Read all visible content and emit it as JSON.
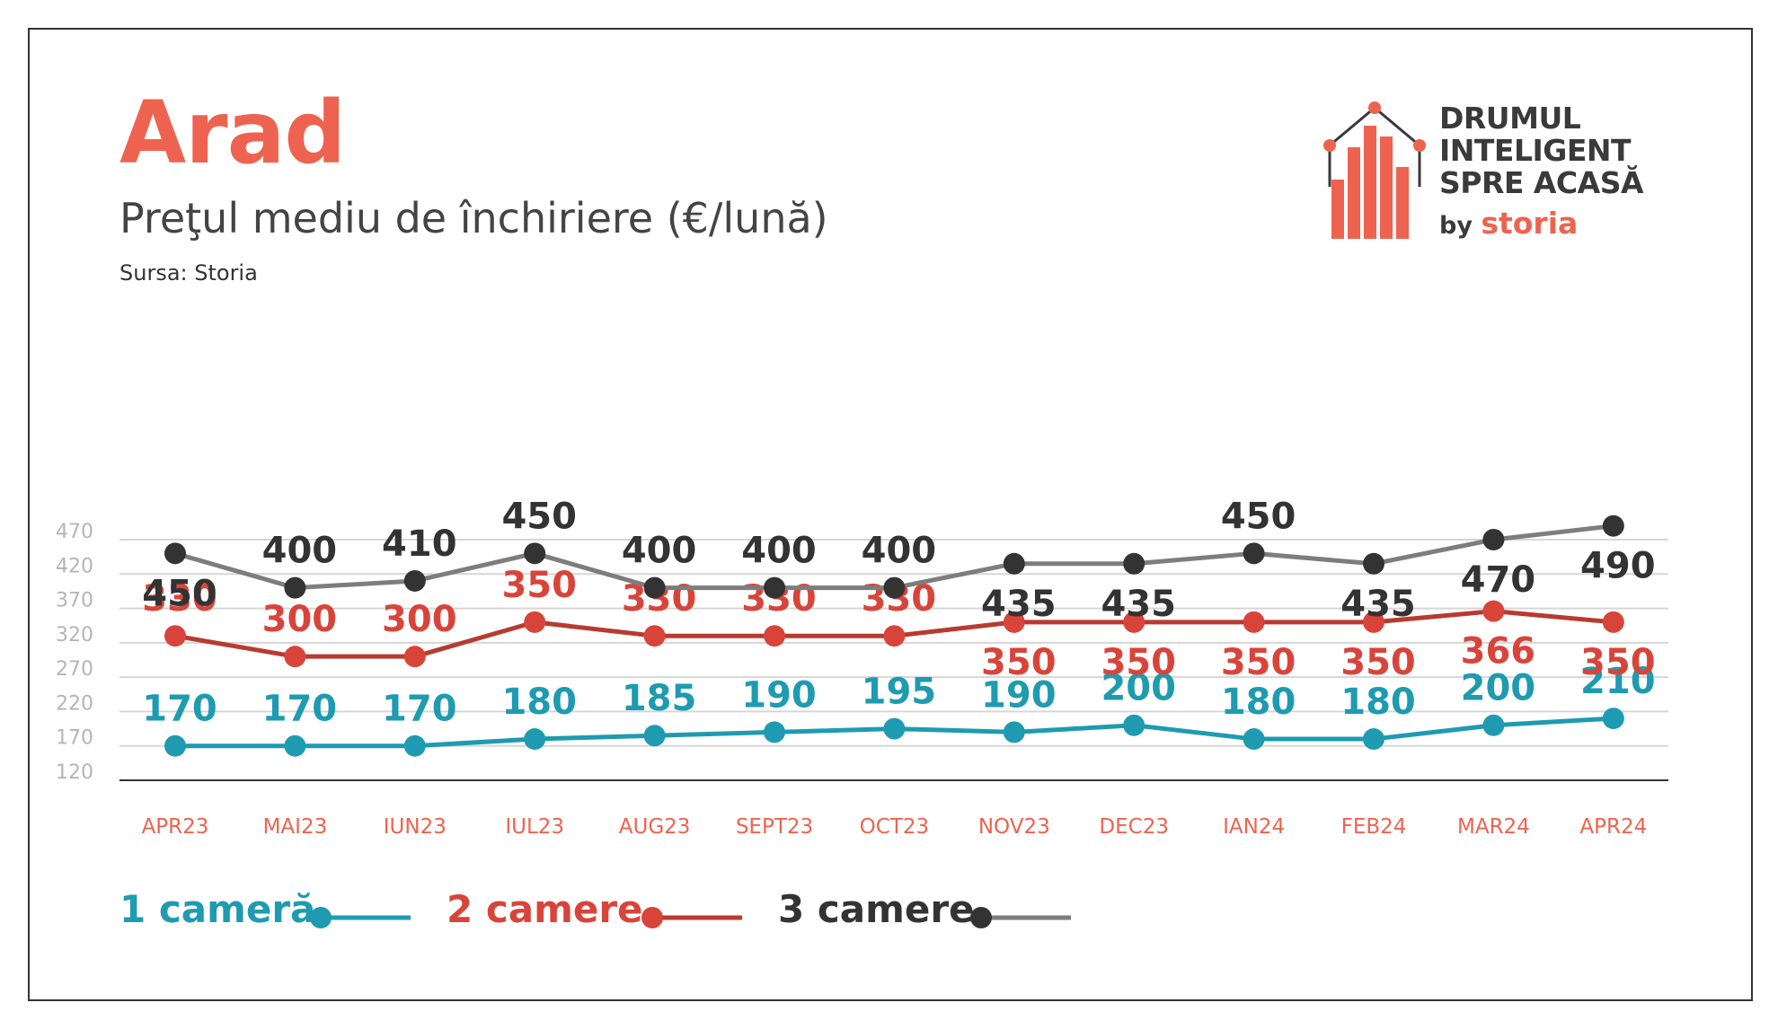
{
  "header": {
    "title": "Arad",
    "subtitle": "Preţul mediu de închiriere (€/lună)",
    "source": "Sursa: Storia"
  },
  "logo": {
    "line1": "DRUMUL",
    "line2": "INTELIGENT",
    "line3": "SPRE ACASĂ",
    "by": "by",
    "brand": "storia",
    "icon": "house-bar-chart-icon"
  },
  "colors": {
    "title": "#ee6350",
    "axis_labels": "#ee6350",
    "one_room": "#1e9bb0",
    "two_rooms": "#b83a30",
    "two_rooms_label": "#d9443a",
    "three_rooms_line": "#7d7d7d",
    "three_rooms_marker": "#333333",
    "grid": "#d6d6d6",
    "tick": "#b5b5b5"
  },
  "chart_data": {
    "type": "line",
    "categories": [
      "APR23",
      "MAI23",
      "IUN23",
      "IUL23",
      "AUG23",
      "SEPT23",
      "OCT23",
      "NOV23",
      "DEC23",
      "IAN24",
      "FEB24",
      "MAR24",
      "APR24"
    ],
    "y_ticks": [
      120,
      170,
      220,
      270,
      320,
      370,
      420,
      470
    ],
    "ylim": [
      120,
      470
    ],
    "grid": true,
    "legend_position": "bottom-left",
    "series": [
      {
        "name": "1 cameră",
        "values": [
          170,
          170,
          170,
          180,
          185,
          190,
          195,
          190,
          200,
          180,
          180,
          200,
          210
        ]
      },
      {
        "name": "2 camere",
        "values": [
          330,
          300,
          300,
          350,
          330,
          330,
          330,
          350,
          350,
          350,
          350,
          366,
          350
        ]
      },
      {
        "name": "3 camere",
        "values": [
          450,
          400,
          410,
          450,
          400,
          400,
          400,
          435,
          435,
          450,
          435,
          470,
          490
        ]
      }
    ]
  }
}
